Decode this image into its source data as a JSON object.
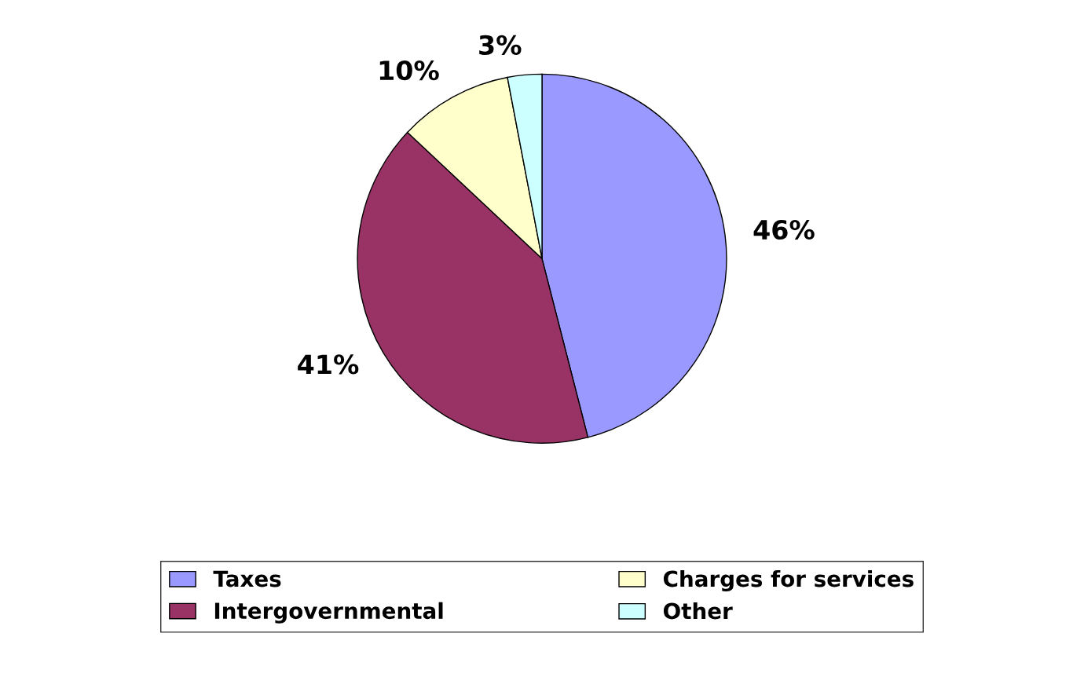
{
  "chart_data": {
    "type": "pie",
    "categories": [
      "Taxes",
      "Intergovernmental",
      "Charges for services",
      "Other"
    ],
    "values": [
      46,
      41,
      10,
      3
    ],
    "colors": [
      "#9999ff",
      "#993366",
      "#ffffcc",
      "#ccffff"
    ],
    "value_labels": [
      "46%",
      "41%",
      "10%",
      "3%"
    ],
    "legend": "bottom"
  }
}
